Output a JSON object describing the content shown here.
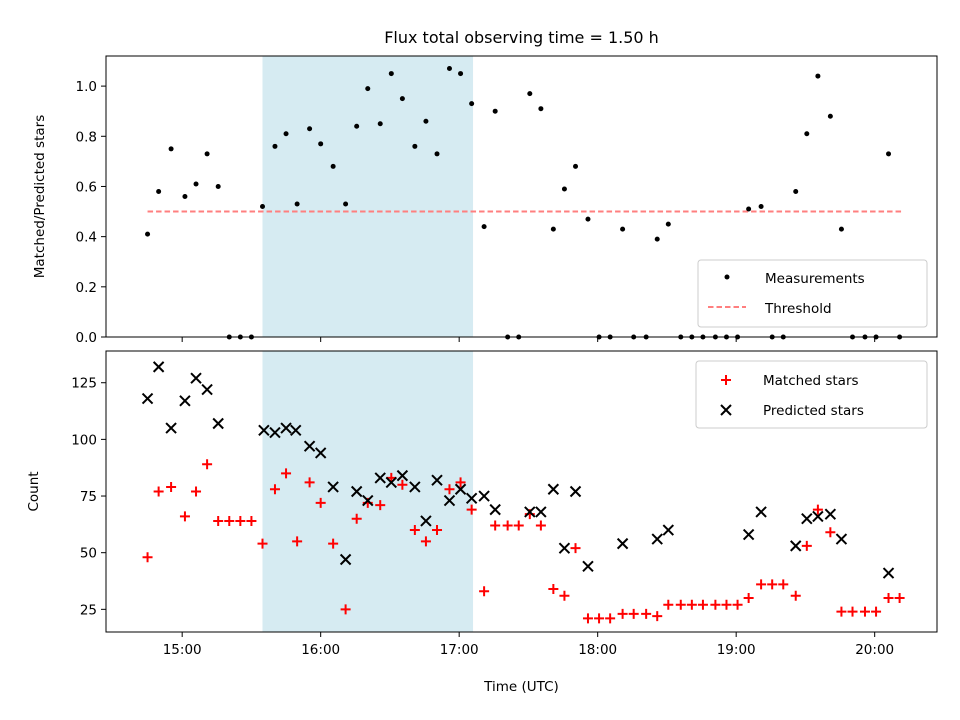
{
  "chart_data": [
    {
      "panel": "top",
      "type": "scatter",
      "title": "Flux total observing time = 1.50 h",
      "xlabel": "",
      "ylabel": "Matched/Predicted stars",
      "xlim_hours": [
        14.45,
        20.45
      ],
      "ylim": [
        0,
        1.12
      ],
      "yticks": [
        0.0,
        0.2,
        0.4,
        0.6,
        0.8,
        1.0
      ],
      "ytick_labels": [
        "0.0",
        "0.2",
        "0.4",
        "0.6",
        "0.8",
        "1.0"
      ],
      "highlight_span_hours": [
        15.58,
        17.1
      ],
      "highlight_color": "#add8e6",
      "legend_position": "lower-right",
      "series": [
        {
          "name": "Measurements",
          "color": "#000000",
          "marker": "dot",
          "x": [
            14.75,
            14.83,
            14.92,
            15.02,
            15.1,
            15.18,
            15.26,
            15.34,
            15.42,
            15.5,
            15.58,
            15.67,
            15.75,
            15.83,
            15.92,
            16.0,
            16.09,
            16.18,
            16.26,
            16.34,
            16.43,
            16.51,
            16.59,
            16.68,
            16.76,
            16.84,
            16.93,
            17.01,
            17.09,
            17.18,
            17.26,
            17.35,
            17.43,
            17.51,
            17.59,
            17.68,
            17.76,
            17.84,
            17.93,
            18.01,
            18.09,
            18.18,
            18.26,
            18.35,
            18.43,
            18.51,
            18.6,
            18.68,
            18.76,
            18.85,
            18.93,
            19.01,
            19.09,
            19.18,
            19.26,
            19.34,
            19.43,
            19.51,
            19.59,
            19.68,
            19.76,
            19.84,
            19.93,
            20.01,
            20.1,
            20.18
          ],
          "y": [
            0.41,
            0.58,
            0.75,
            0.56,
            0.61,
            0.73,
            0.6,
            0.0,
            0.0,
            0.0,
            0.52,
            0.76,
            0.81,
            0.53,
            0.83,
            0.77,
            0.68,
            0.53,
            0.84,
            0.99,
            0.85,
            1.05,
            0.95,
            0.76,
            0.86,
            0.73,
            1.07,
            1.05,
            0.93,
            0.44,
            0.9,
            0.0,
            0.0,
            0.97,
            0.91,
            0.43,
            0.59,
            0.68,
            0.47,
            0.0,
            0.0,
            0.43,
            0.0,
            0.0,
            0.39,
            0.45,
            0.0,
            0.0,
            0.0,
            0.0,
            0.0,
            0.0,
            0.51,
            0.52,
            0.0,
            0.0,
            0.58,
            0.81,
            1.04,
            0.88,
            0.43,
            0.0,
            0.0,
            0.0,
            0.73,
            0.0
          ]
        },
        {
          "name": "Threshold",
          "color": "#ff7f7f",
          "style": "dashed",
          "x": [
            14.75,
            20.2
          ],
          "y": [
            0.5,
            0.5
          ]
        }
      ]
    },
    {
      "panel": "bottom",
      "type": "scatter",
      "title": "",
      "xlabel": "Time (UTC)",
      "ylabel": "Count",
      "xlim_hours": [
        14.45,
        20.45
      ],
      "ylim": [
        15,
        139
      ],
      "yticks": [
        25,
        50,
        75,
        100,
        125
      ],
      "ytick_labels": [
        "25",
        "50",
        "75",
        "100",
        "125"
      ],
      "xticks_hours": [
        15,
        16,
        17,
        18,
        19,
        20
      ],
      "xtick_labels": [
        "15:00",
        "16:00",
        "17:00",
        "18:00",
        "19:00",
        "20:00"
      ],
      "highlight_span_hours": [
        15.58,
        17.1
      ],
      "highlight_color": "#add8e6",
      "legend_position": "upper-right",
      "series": [
        {
          "name": "Matched stars",
          "color": "#ff0000",
          "marker": "plus",
          "x": [
            14.75,
            14.83,
            14.92,
            15.02,
            15.1,
            15.18,
            15.26,
            15.34,
            15.42,
            15.5,
            15.58,
            15.67,
            15.75,
            15.83,
            15.92,
            16.0,
            16.09,
            16.18,
            16.26,
            16.34,
            16.43,
            16.51,
            16.59,
            16.68,
            16.76,
            16.84,
            16.93,
            17.01,
            17.09,
            17.18,
            17.26,
            17.35,
            17.43,
            17.51,
            17.59,
            17.68,
            17.76,
            17.84,
            17.93,
            18.01,
            18.09,
            18.18,
            18.26,
            18.35,
            18.43,
            18.51,
            18.6,
            18.68,
            18.76,
            18.85,
            18.93,
            19.01,
            19.09,
            19.18,
            19.26,
            19.34,
            19.43,
            19.51,
            19.59,
            19.68,
            19.76,
            19.84,
            19.93,
            20.01,
            20.1,
            20.18
          ],
          "y": [
            48,
            77,
            79,
            66,
            77,
            89,
            64,
            64,
            64,
            64,
            54,
            78,
            85,
            55,
            81,
            72,
            54,
            25,
            65,
            72,
            71,
            83,
            80,
            60,
            55,
            60,
            78,
            81,
            69,
            33,
            62,
            62,
            62,
            67,
            62,
            34,
            31,
            52,
            21,
            21,
            21,
            23,
            23,
            23,
            22,
            27,
            27,
            27,
            27,
            27,
            27,
            27,
            30,
            36,
            36,
            36,
            31,
            53,
            69,
            59,
            24,
            24,
            24,
            24,
            30,
            30
          ]
        },
        {
          "name": "Predicted stars",
          "color": "#000000",
          "marker": "x",
          "x": [
            14.75,
            14.83,
            14.92,
            15.02,
            15.1,
            15.18,
            15.26,
            15.59,
            15.67,
            15.75,
            15.82,
            15.92,
            16.0,
            16.09,
            16.18,
            16.26,
            16.34,
            16.43,
            16.51,
            16.59,
            16.68,
            16.76,
            16.84,
            16.93,
            17.01,
            17.09,
            17.18,
            17.26,
            17.51,
            17.59,
            17.68,
            17.76,
            17.84,
            17.93,
            18.18,
            18.43,
            18.51,
            19.09,
            19.18,
            19.43,
            19.51,
            19.59,
            19.68,
            19.76,
            20.1
          ],
          "y": [
            118,
            132,
            105,
            117,
            127,
            122,
            107,
            104,
            103,
            105,
            104,
            97,
            94,
            79,
            47,
            77,
            73,
            83,
            81,
            84,
            79,
            64,
            82,
            73,
            78,
            74,
            75,
            69,
            68,
            68,
            78,
            52,
            77,
            44,
            54,
            56,
            60,
            58,
            68,
            53,
            65,
            66,
            67,
            56,
            41
          ]
        }
      ]
    }
  ]
}
